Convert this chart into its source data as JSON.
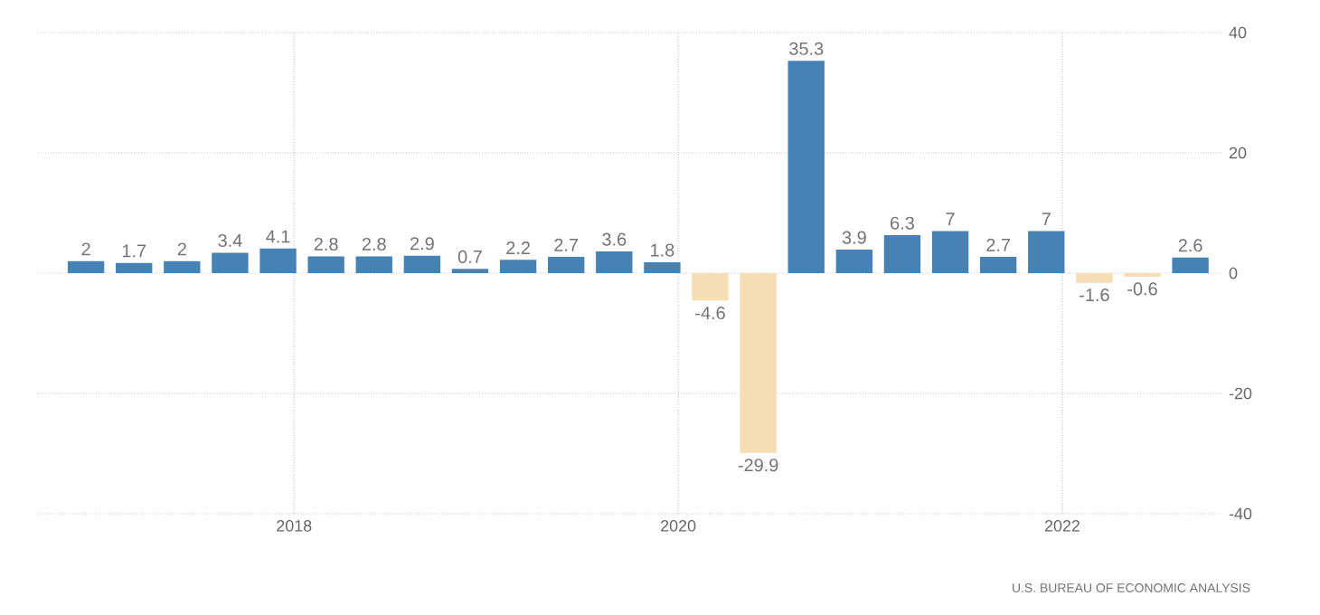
{
  "chart_data": {
    "type": "bar",
    "x": [
      "2016-12",
      "2017-03",
      "2017-06",
      "2017-09",
      "2017-12",
      "2018-03",
      "2018-06",
      "2018-09",
      "2018-12",
      "2019-03",
      "2019-06",
      "2019-09",
      "2019-12",
      "2020-03",
      "2020-06",
      "2020-09",
      "2020-12",
      "2021-03",
      "2021-06",
      "2021-09",
      "2021-12",
      "2022-03",
      "2022-06",
      "2022-09"
    ],
    "values": [
      2,
      1.7,
      2,
      3.4,
      4.1,
      2.8,
      2.8,
      2.9,
      0.7,
      2.2,
      2.7,
      3.6,
      1.8,
      -4.6,
      -29.9,
      35.3,
      3.9,
      6.3,
      7,
      2.7,
      7,
      -1.6,
      -0.6,
      2.6
    ],
    "colors": [
      "#4682b4",
      "#4682b4",
      "#4682b4",
      "#4682b4",
      "#4682b4",
      "#4682b4",
      "#4682b4",
      "#4682b4",
      "#4682b4",
      "#4682b4",
      "#4682b4",
      "#4682b4",
      "#4682b4",
      "#f5deb3",
      "#f5deb3",
      "#4682b4",
      "#4682b4",
      "#4682b4",
      "#4682b4",
      "#4682b4",
      "#4682b4",
      "#f5deb3",
      "#f5deb3",
      "#4682b4"
    ],
    "data_labels": true,
    "xlim": [
      "2016-09",
      "2022-11"
    ],
    "xticks": [
      "2018",
      "2020",
      "2022"
    ],
    "ylim": [
      -40,
      40
    ],
    "yticks": [
      -40,
      -20,
      0,
      20,
      40
    ],
    "grid": true,
    "annotations": [
      "U.S. BUREAU OF ECONOMIC ANALYSIS"
    ]
  }
}
